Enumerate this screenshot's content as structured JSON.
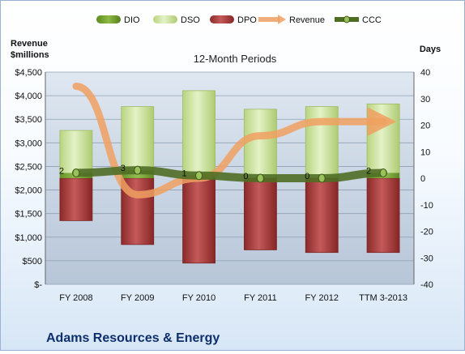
{
  "chart_data": {
    "type": "bar",
    "title": "12-Month Periods",
    "ylabel_left": "Revenue\n$millions",
    "ylabel_right": "Days",
    "company": "Adams Resources & Energy",
    "categories": [
      "FY 2008",
      "FY 2009",
      "FY 2010",
      "FY 2011",
      "FY 2012",
      "TTM 3-2013"
    ],
    "left_axis": {
      "ylim": [
        0,
        4500
      ],
      "ticks": [
        0,
        500,
        1000,
        1500,
        2000,
        2500,
        3000,
        3500,
        4000,
        4500
      ],
      "tick_labels": [
        "$-",
        "$500",
        "$1,000",
        "$1,500",
        "$2,000",
        "$2,500",
        "$3,000",
        "$3,500",
        "$4,000",
        "$4,500"
      ]
    },
    "right_axis": {
      "ylim": [
        -40,
        40
      ],
      "ticks": [
        -40,
        -30,
        -20,
        -10,
        0,
        10,
        20,
        30,
        40
      ],
      "tick_labels": [
        "-40",
        "-30",
        "-20",
        "-10",
        "0",
        "10",
        "20",
        "30",
        "40"
      ]
    },
    "legend": {
      "placement": "top",
      "entries": [
        "DIO",
        "DSO",
        "DPO",
        "Revenue",
        "CCC"
      ]
    },
    "series": [
      {
        "name": "DIO",
        "axis": "right",
        "values": [
          2,
          3,
          1,
          0,
          0,
          2
        ],
        "color": "#6e9a28"
      },
      {
        "name": "DSO",
        "axis": "right",
        "values": [
          18,
          27,
          33,
          26,
          27,
          28
        ],
        "color": "#cfe6a2"
      },
      {
        "name": "DPO",
        "axis": "right",
        "values": [
          -16,
          -25,
          -32,
          -27,
          -28,
          -28
        ],
        "color": "#a83a3a"
      },
      {
        "name": "Revenue",
        "axis": "left",
        "values": [
          4200,
          1900,
          2250,
          3150,
          3450,
          3450
        ],
        "color": "#f0a060"
      },
      {
        "name": "CCC",
        "axis": "right",
        "values": [
          2,
          3,
          1,
          0,
          0,
          2
        ],
        "color": "#5d7e2e"
      }
    ],
    "ccc_labels": [
      "2",
      "3",
      "1",
      "0",
      "0",
      "2"
    ],
    "grid": true
  }
}
